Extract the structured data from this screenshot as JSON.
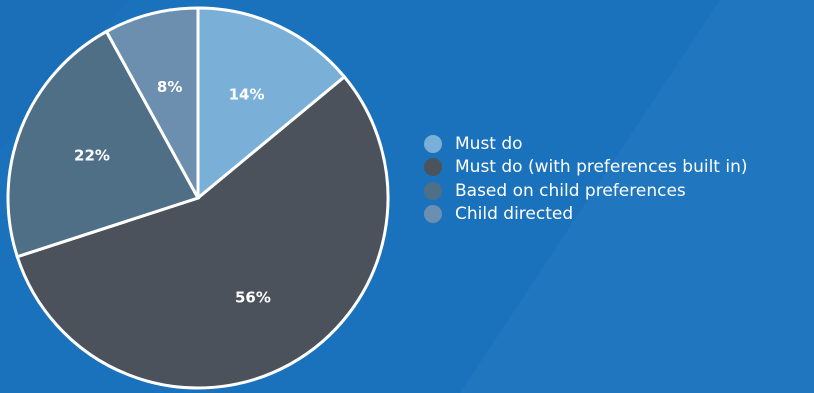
{
  "chart_data": {
    "type": "pie",
    "categories": [
      "Must do",
      "Must do (with preferences built in)",
      "Based on child preferences",
      "Child directed"
    ],
    "values": [
      14,
      56,
      22,
      8
    ],
    "labels": [
      "14%",
      "56%",
      "22%",
      "8%"
    ],
    "colors": [
      "#7ab0d8",
      "#4b525b",
      "#4f6f86",
      "#6c8fb0"
    ],
    "legend_position": "right",
    "title": ""
  },
  "colors": {
    "background": "#1a6fb8",
    "slice_border": "#ffffff"
  }
}
